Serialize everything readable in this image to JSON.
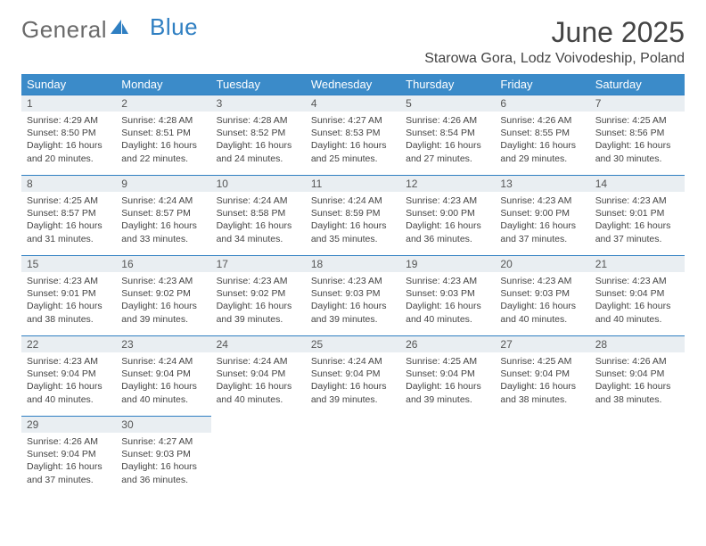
{
  "brand": {
    "part1": "General",
    "part2": "Blue"
  },
  "title": "June 2025",
  "location": "Starowa Gora, Lodz Voivodeship, Poland",
  "colors": {
    "header_bg": "#3b8bc9",
    "header_text": "#ffffff",
    "row_divider": "#2f7fc2",
    "daynum_bg": "#e9eef2",
    "text": "#444444"
  },
  "weekdays": [
    "Sunday",
    "Monday",
    "Tuesday",
    "Wednesday",
    "Thursday",
    "Friday",
    "Saturday"
  ],
  "days": [
    {
      "n": "1",
      "sunrise": "4:29 AM",
      "sunset": "8:50 PM",
      "daylight": "16 hours and 20 minutes."
    },
    {
      "n": "2",
      "sunrise": "4:28 AM",
      "sunset": "8:51 PM",
      "daylight": "16 hours and 22 minutes."
    },
    {
      "n": "3",
      "sunrise": "4:28 AM",
      "sunset": "8:52 PM",
      "daylight": "16 hours and 24 minutes."
    },
    {
      "n": "4",
      "sunrise": "4:27 AM",
      "sunset": "8:53 PM",
      "daylight": "16 hours and 25 minutes."
    },
    {
      "n": "5",
      "sunrise": "4:26 AM",
      "sunset": "8:54 PM",
      "daylight": "16 hours and 27 minutes."
    },
    {
      "n": "6",
      "sunrise": "4:26 AM",
      "sunset": "8:55 PM",
      "daylight": "16 hours and 29 minutes."
    },
    {
      "n": "7",
      "sunrise": "4:25 AM",
      "sunset": "8:56 PM",
      "daylight": "16 hours and 30 minutes."
    },
    {
      "n": "8",
      "sunrise": "4:25 AM",
      "sunset": "8:57 PM",
      "daylight": "16 hours and 31 minutes."
    },
    {
      "n": "9",
      "sunrise": "4:24 AM",
      "sunset": "8:57 PM",
      "daylight": "16 hours and 33 minutes."
    },
    {
      "n": "10",
      "sunrise": "4:24 AM",
      "sunset": "8:58 PM",
      "daylight": "16 hours and 34 minutes."
    },
    {
      "n": "11",
      "sunrise": "4:24 AM",
      "sunset": "8:59 PM",
      "daylight": "16 hours and 35 minutes."
    },
    {
      "n": "12",
      "sunrise": "4:23 AM",
      "sunset": "9:00 PM",
      "daylight": "16 hours and 36 minutes."
    },
    {
      "n": "13",
      "sunrise": "4:23 AM",
      "sunset": "9:00 PM",
      "daylight": "16 hours and 37 minutes."
    },
    {
      "n": "14",
      "sunrise": "4:23 AM",
      "sunset": "9:01 PM",
      "daylight": "16 hours and 37 minutes."
    },
    {
      "n": "15",
      "sunrise": "4:23 AM",
      "sunset": "9:01 PM",
      "daylight": "16 hours and 38 minutes."
    },
    {
      "n": "16",
      "sunrise": "4:23 AM",
      "sunset": "9:02 PM",
      "daylight": "16 hours and 39 minutes."
    },
    {
      "n": "17",
      "sunrise": "4:23 AM",
      "sunset": "9:02 PM",
      "daylight": "16 hours and 39 minutes."
    },
    {
      "n": "18",
      "sunrise": "4:23 AM",
      "sunset": "9:03 PM",
      "daylight": "16 hours and 39 minutes."
    },
    {
      "n": "19",
      "sunrise": "4:23 AM",
      "sunset": "9:03 PM",
      "daylight": "16 hours and 40 minutes."
    },
    {
      "n": "20",
      "sunrise": "4:23 AM",
      "sunset": "9:03 PM",
      "daylight": "16 hours and 40 minutes."
    },
    {
      "n": "21",
      "sunrise": "4:23 AM",
      "sunset": "9:04 PM",
      "daylight": "16 hours and 40 minutes."
    },
    {
      "n": "22",
      "sunrise": "4:23 AM",
      "sunset": "9:04 PM",
      "daylight": "16 hours and 40 minutes."
    },
    {
      "n": "23",
      "sunrise": "4:24 AM",
      "sunset": "9:04 PM",
      "daylight": "16 hours and 40 minutes."
    },
    {
      "n": "24",
      "sunrise": "4:24 AM",
      "sunset": "9:04 PM",
      "daylight": "16 hours and 40 minutes."
    },
    {
      "n": "25",
      "sunrise": "4:24 AM",
      "sunset": "9:04 PM",
      "daylight": "16 hours and 39 minutes."
    },
    {
      "n": "26",
      "sunrise": "4:25 AM",
      "sunset": "9:04 PM",
      "daylight": "16 hours and 39 minutes."
    },
    {
      "n": "27",
      "sunrise": "4:25 AM",
      "sunset": "9:04 PM",
      "daylight": "16 hours and 38 minutes."
    },
    {
      "n": "28",
      "sunrise": "4:26 AM",
      "sunset": "9:04 PM",
      "daylight": "16 hours and 38 minutes."
    },
    {
      "n": "29",
      "sunrise": "4:26 AM",
      "sunset": "9:04 PM",
      "daylight": "16 hours and 37 minutes."
    },
    {
      "n": "30",
      "sunrise": "4:27 AM",
      "sunset": "9:03 PM",
      "daylight": "16 hours and 36 minutes."
    }
  ],
  "labels": {
    "sunrise": "Sunrise:",
    "sunset": "Sunset:",
    "daylight": "Daylight:"
  },
  "layout": {
    "total_cells": 35,
    "last_row_start": 28
  }
}
